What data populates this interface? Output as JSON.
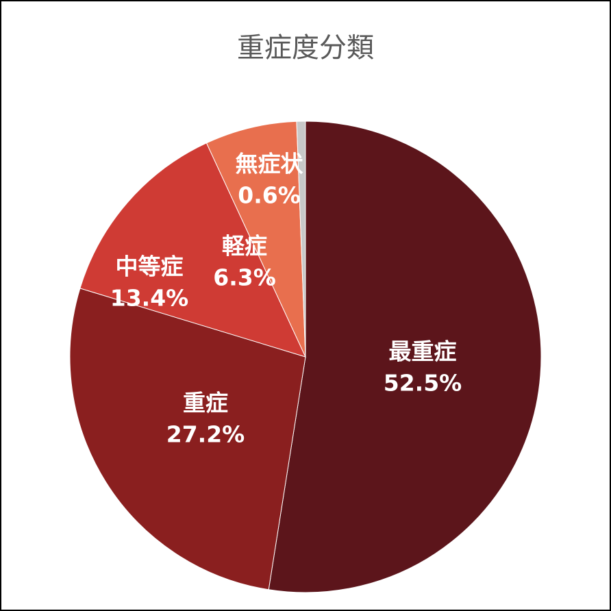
{
  "chart_data": {
    "type": "pie",
    "title": "重症度分類",
    "categories": [
      "最重症",
      "重症",
      "中等症",
      "軽症",
      "無症状"
    ],
    "values": [
      52.5,
      27.2,
      13.4,
      6.3,
      0.6
    ],
    "value_labels": [
      "52.5%",
      "27.2%",
      "13.4%",
      "6.3%",
      "0.6%"
    ],
    "colors": [
      "#5c151b",
      "#8a1f1f",
      "#cf3b34",
      "#e86f4e",
      "#c8c8c8"
    ]
  }
}
